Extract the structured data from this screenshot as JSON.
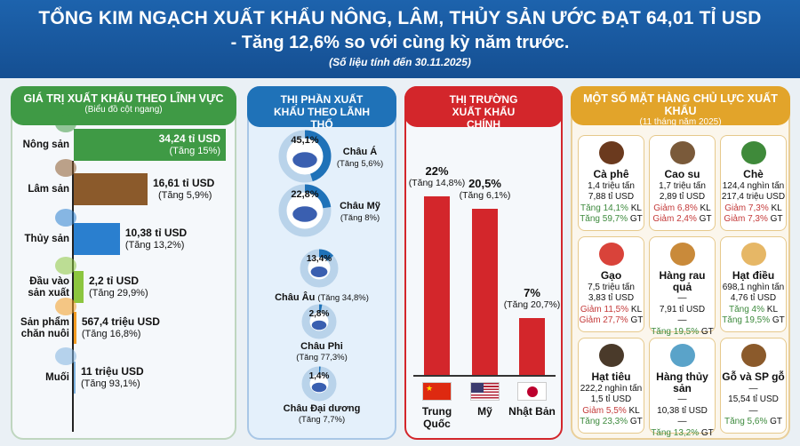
{
  "header": {
    "title": "TỔNG KIM NGẠCH XUẤT KHẨU NÔNG, LÂM, THỦY SẢN ƯỚC ĐẠT 64,01 TỈ USD",
    "subtitle": "- Tăng 12,6% so với cùng kỳ năm trước.",
    "note": "(Số liệu tính đến 30.11.2025)"
  },
  "chart_data": [
    {
      "type": "bar",
      "orientation": "horizontal",
      "title": "GIÁ TRỊ XUẤT KHẨU THEO LĨNH VỰC",
      "subtitle": "(Biểu đồ cột ngang)",
      "unit": "tỉ USD",
      "categories": [
        "Nông sản",
        "Lâm sản",
        "Thủy sản",
        "Đầu vào sản xuất",
        "Sản phẩm chăn nuôi",
        "Muối"
      ],
      "values": [
        34.24,
        16.61,
        10.38,
        2.2,
        0.5674,
        0.011
      ],
      "value_labels": [
        "34,24 tỉ USD",
        "16,61 tỉ USD",
        "10,38 tỉ USD",
        "2,2 tỉ USD",
        "567,4 triệu USD",
        "11 triệu USD"
      ],
      "change_labels": [
        "(Tăng 15%)",
        "(Tăng 5,9%)",
        "(Tăng 13,2%)",
        "(Tăng 29,9%)",
        "(Tăng 16,8%)",
        "(Tăng 93,1%)"
      ],
      "colors": [
        "#3f9a45",
        "#8b5a2b",
        "#2a7fcf",
        "#8cc63f",
        "#f39c22",
        "#7fb3e0"
      ]
    },
    {
      "type": "pie",
      "style": "donut",
      "title": "THỊ PHẦN XUẤT KHẨU THEO LÃNH THỔ",
      "unit": "%",
      "categories": [
        "Châu Á",
        "Châu Mỹ",
        "Châu Âu",
        "Châu Phi",
        "Châu Đại dương"
      ],
      "values": [
        45.1,
        22.8,
        13.4,
        2.8,
        1.4
      ],
      "value_labels": [
        "45,1%",
        "22,8%",
        "13,4%",
        "2,8%",
        "1,4%"
      ],
      "change_labels": [
        "(Tăng 5,6%)",
        "(Tăng 8%)",
        "(Tăng 34,8%)",
        "(Tăng 77,3%)",
        "(Tăng 7,7%)"
      ],
      "colors": {
        "fill": "#1f72b8",
        "track": "#b9d3ea"
      }
    },
    {
      "type": "bar",
      "orientation": "vertical",
      "title": "THỊ TRƯỜNG XUẤT KHẨU CHÍNH",
      "unit": "%",
      "categories": [
        "Trung Quốc",
        "Mỹ",
        "Nhật Bản"
      ],
      "values": [
        22,
        20.5,
        7
      ],
      "value_labels": [
        "22%",
        "20,5%",
        "7%"
      ],
      "change_labels": [
        "(Tăng 14,8%)",
        "(Tăng 6,1%)",
        "(Tăng 20,7%)"
      ],
      "colors": [
        "#d3262b"
      ]
    }
  ],
  "products": {
    "title": "MỘT SỐ MẶT HÀNG CHỦ LỰC XUẤT KHẨU",
    "subtitle": "(11 tháng năm 2025)",
    "items": [
      {
        "name": "Cà phê",
        "icon": "coffee-bean-icon",
        "l1": "1,4 triệu tấn",
        "l2": "7,88 tỉ USD",
        "kl": "Tăng 14,1%",
        "kl_dir": "up",
        "kl_s": " KL",
        "gt": "Tăng 59,7%",
        "gt_dir": "up",
        "gt_s": " GT"
      },
      {
        "name": "Cao su",
        "icon": "rubber-icon",
        "l1": "1,7 triệu tấn",
        "l2": "2,89 tỉ USD",
        "kl": "Giảm 6,8%",
        "kl_dir": "dn",
        "kl_s": " KL",
        "gt": "Giảm 2,4%",
        "gt_dir": "dn",
        "gt_s": " GT"
      },
      {
        "name": "Chè",
        "icon": "tea-leaf-icon",
        "l1": "124,4 nghìn tấn",
        "l2": "217,4 triệu USD",
        "kl": "Giảm 7,3%",
        "kl_dir": "dn",
        "kl_s": " KL",
        "gt": "Giảm 7,3%",
        "gt_dir": "dn",
        "gt_s": " GT"
      },
      {
        "name": "Gạo",
        "icon": "rice-bowl-icon",
        "l1": "7,5 triệu tấn",
        "l2": "3,83 tỉ USD",
        "kl": "Giảm 11,5%",
        "kl_dir": "dn",
        "kl_s": " KL",
        "gt": "Giảm 27,7%",
        "gt_dir": "dn",
        "gt_s": " GT"
      },
      {
        "name": "Hàng rau quả",
        "icon": "fruit-basket-icon",
        "l1": "—",
        "l2": "7,91 tỉ USD",
        "kl": "—",
        "kl_dir": "none",
        "kl_s": "",
        "gt": "Tăng 19,5%",
        "gt_dir": "up",
        "gt_s": " GT"
      },
      {
        "name": "Hạt điều",
        "icon": "cashew-icon",
        "l1": "698,1 nghìn tấn",
        "l2": "4,76 tỉ USD",
        "kl": "Tăng 4%",
        "kl_dir": "up",
        "kl_s": " KL",
        "gt": "Tăng 19,5%",
        "gt_dir": "up",
        "gt_s": " GT"
      },
      {
        "name": "Hạt tiêu",
        "icon": "pepper-icon",
        "l1": "222,2 nghìn tấn",
        "l2": "1,5 tỉ USD",
        "kl": "Giảm 5,5%",
        "kl_dir": "dn",
        "kl_s": " KL",
        "gt": "Tăng 23,3%",
        "gt_dir": "up",
        "gt_s": " GT"
      },
      {
        "name": "Hàng thủy sản",
        "icon": "fish-icon",
        "l1": "—",
        "l2": "10,38 tỉ USD",
        "kl": "—",
        "kl_dir": "none",
        "kl_s": "",
        "gt": "Tăng 13,2%",
        "gt_dir": "up",
        "gt_s": " GT"
      },
      {
        "name": "Gỗ và SP gỗ",
        "icon": "wood-logs-icon",
        "l1": "—",
        "l2": "15,54 tỉ USD",
        "kl": "—",
        "kl_dir": "none",
        "kl_s": "",
        "gt": "Tăng 5,6%",
        "gt_dir": "up",
        "gt_s": " GT"
      }
    ]
  }
}
